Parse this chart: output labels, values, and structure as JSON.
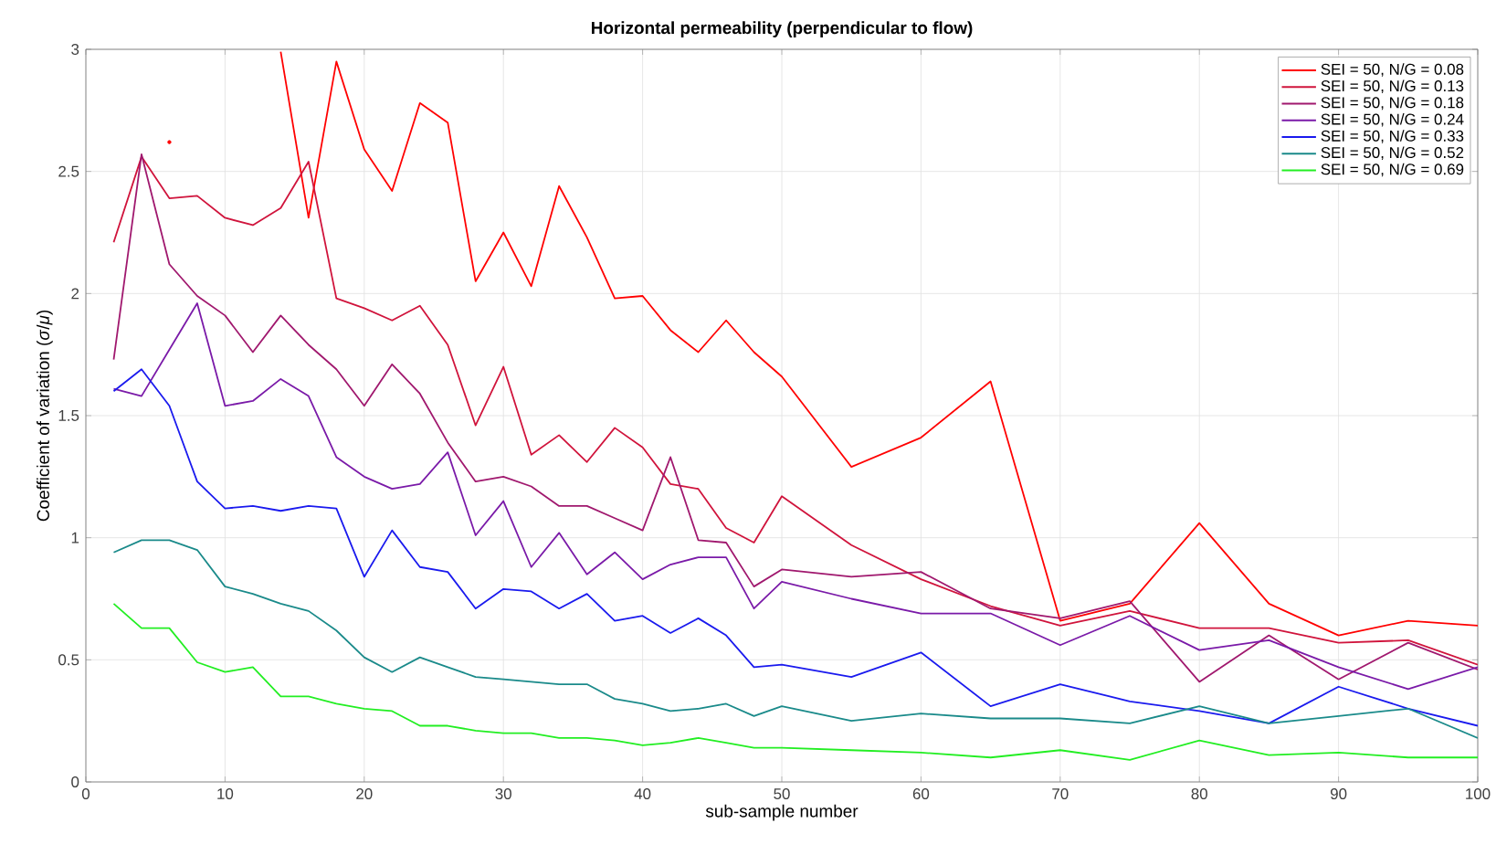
{
  "chart_data": {
    "type": "line",
    "title": "Horizontal permeability (perpendicular to flow)",
    "xlabel": "sub-sample number",
    "ylabel": "Coefficient of variation (*σ*/*μ*)",
    "x": [
      2,
      4,
      6,
      8,
      10,
      12,
      14,
      16,
      18,
      20,
      22,
      24,
      26,
      28,
      30,
      32,
      34,
      36,
      38,
      40,
      42,
      44,
      46,
      48,
      50,
      55,
      60,
      65,
      70,
      75,
      80,
      85,
      90,
      95,
      100
    ],
    "series": [
      {
        "name": "SEI = 50, N/G = 0.08",
        "color": "#ff0000",
        "values": [
          null,
          null,
          2.62,
          null,
          null,
          null,
          2.99,
          2.31,
          2.95,
          2.59,
          2.42,
          2.78,
          2.7,
          2.05,
          2.25,
          2.03,
          2.44,
          2.23,
          1.98,
          1.99,
          1.85,
          1.76,
          1.89,
          1.76,
          1.66,
          1.29,
          1.41,
          1.64,
          0.66,
          0.73,
          1.06,
          0.73,
          0.6,
          0.66,
          0.64
        ]
      },
      {
        "name": "SEI = 50, N/G = 0.13",
        "color": "#d0143c",
        "values": [
          2.21,
          2.56,
          2.39,
          2.4,
          2.31,
          2.28,
          2.35,
          2.54,
          1.98,
          1.94,
          1.89,
          1.95,
          1.79,
          1.46,
          1.7,
          1.34,
          1.42,
          1.31,
          1.45,
          1.37,
          1.22,
          1.2,
          1.04,
          0.98,
          1.17,
          0.97,
          0.83,
          0.72,
          0.64,
          0.7,
          0.63,
          0.63,
          0.57,
          0.58,
          0.48
        ]
      },
      {
        "name": "SEI = 50, N/G = 0.18",
        "color": "#a0186e",
        "values": [
          1.73,
          2.57,
          2.12,
          1.99,
          1.91,
          1.76,
          1.91,
          1.79,
          1.69,
          1.54,
          1.71,
          1.59,
          1.39,
          1.23,
          1.25,
          1.21,
          1.13,
          1.13,
          1.08,
          1.03,
          1.33,
          0.99,
          0.98,
          0.8,
          0.87,
          0.84,
          0.86,
          0.71,
          0.67,
          0.74,
          0.41,
          0.6,
          0.42,
          0.57,
          0.46
        ]
      },
      {
        "name": "SEI = 50, N/G = 0.24",
        "color": "#7a1aa8",
        "values": [
          1.61,
          1.58,
          1.77,
          1.96,
          1.54,
          1.56,
          1.65,
          1.58,
          1.33,
          1.25,
          1.2,
          1.22,
          1.35,
          1.01,
          1.15,
          0.88,
          1.02,
          0.85,
          0.94,
          0.83,
          0.89,
          0.92,
          0.92,
          0.71,
          0.82,
          0.75,
          0.69,
          0.69,
          0.56,
          0.68,
          0.54,
          0.58,
          0.47,
          0.38,
          0.47
        ]
      },
      {
        "name": "SEI = 50, N/G = 0.33",
        "color": "#1a1aee",
        "values": [
          1.6,
          1.69,
          1.54,
          1.23,
          1.12,
          1.13,
          1.11,
          1.13,
          1.12,
          0.84,
          1.03,
          0.88,
          0.86,
          0.71,
          0.79,
          0.78,
          0.71,
          0.77,
          0.66,
          0.68,
          0.61,
          0.67,
          0.6,
          0.47,
          0.48,
          0.43,
          0.53,
          0.31,
          0.4,
          0.33,
          0.29,
          0.24,
          0.39,
          0.3,
          0.23
        ]
      },
      {
        "name": "SEI = 50, N/G = 0.52",
        "color": "#1a8a8a",
        "values": [
          0.94,
          0.99,
          0.99,
          0.95,
          0.8,
          0.77,
          0.73,
          0.7,
          0.62,
          0.51,
          0.45,
          0.51,
          0.47,
          0.43,
          0.42,
          0.41,
          0.4,
          0.4,
          0.34,
          0.32,
          0.29,
          0.3,
          0.32,
          0.27,
          0.31,
          0.25,
          0.28,
          0.26,
          0.26,
          0.24,
          0.31,
          0.24,
          0.27,
          0.3,
          0.18
        ]
      },
      {
        "name": "SEI = 50, N/G = 0.69",
        "color": "#22ee22",
        "values": [
          0.73,
          0.63,
          0.63,
          0.49,
          0.45,
          0.47,
          0.35,
          0.35,
          0.32,
          0.3,
          0.29,
          0.23,
          0.23,
          0.21,
          0.2,
          0.2,
          0.18,
          0.18,
          0.17,
          0.15,
          0.16,
          0.18,
          0.16,
          0.14,
          0.14,
          0.13,
          0.12,
          0.1,
          0.13,
          0.09,
          0.17,
          0.11,
          0.12,
          0.1,
          0.1
        ]
      }
    ],
    "xlim": [
      0,
      100
    ],
    "xticks": [
      0,
      10,
      20,
      30,
      40,
      50,
      60,
      70,
      80,
      90,
      100
    ],
    "ylim": [
      0,
      3
    ],
    "yticks": [
      0,
      0.5,
      1,
      1.5,
      2,
      2.5,
      3
    ],
    "grid": true,
    "legend": "top right",
    "marker": "none",
    "line_style": "solid"
  }
}
